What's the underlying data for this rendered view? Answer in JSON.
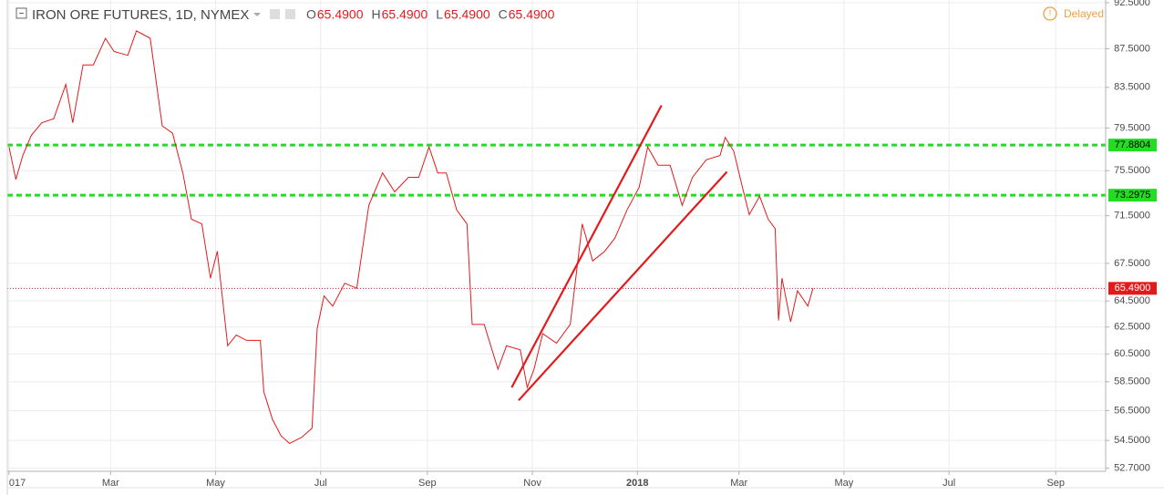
{
  "header": {
    "title": "IRON ORE FUTURES, 1D, NYMEX",
    "ohlc": [
      {
        "label": "O",
        "value": "65.4900"
      },
      {
        "label": "H",
        "value": "65.4900"
      },
      {
        "label": "L",
        "value": "65.4900"
      },
      {
        "label": "C",
        "value": "65.4900"
      }
    ],
    "status": "Delayed"
  },
  "chart_data": {
    "type": "line",
    "log_scale": true,
    "grid": true,
    "series": [
      {
        "name": "IRON ORE FUTURES",
        "color": "#e31a1c",
        "x": [
          0,
          4,
          8,
          13,
          19,
          26,
          33,
          37,
          43,
          49,
          56,
          61,
          69,
          74,
          82,
          89,
          95,
          101,
          106,
          112,
          117,
          121,
          127,
          132,
          138,
          146,
          148,
          153,
          158,
          163,
          170,
          176,
          179,
          183,
          188,
          195,
          202,
          209,
          217,
          224,
          232,
          238,
          244,
          249,
          254,
          260,
          266,
          269,
          276,
          284,
          289,
          297,
          301,
          305,
          310,
          318,
          326,
          333,
          339,
          346,
          352,
          359,
          366,
          371,
          377,
          384,
          391,
          397,
          405,
          413,
          416,
          421,
          426,
          430,
          436,
          441,
          445,
          447,
          449,
          454,
          458,
          464,
          467
        ],
        "values": [
          77.7,
          74.7,
          76.9,
          78.8,
          80.0,
          80.4,
          83.8,
          80.0,
          85.8,
          85.8,
          88.6,
          87.2,
          86.8,
          89.4,
          88.6,
          79.7,
          79.0,
          75.3,
          71.2,
          70.8,
          66.3,
          68.5,
          61.1,
          61.9,
          61.5,
          61.5,
          57.8,
          55.9,
          54.8,
          54.3,
          54.7,
          55.3,
          62.4,
          64.9,
          64.1,
          65.9,
          65.5,
          72.4,
          75.3,
          73.6,
          74.9,
          74.9,
          77.7,
          75.3,
          75.3,
          72.0,
          70.8,
          62.7,
          62.7,
          59.4,
          61.1,
          60.8,
          58.1,
          59.4,
          62.0,
          61.3,
          62.7,
          70.8,
          67.7,
          68.5,
          69.6,
          72.0,
          74.0,
          77.7,
          76.0,
          76.0,
          72.4,
          74.9,
          76.5,
          76.9,
          78.6,
          77.3,
          74.0,
          71.6,
          73.2,
          71.2,
          70.4,
          63.0,
          66.3,
          62.9,
          65.3,
          64.1,
          65.49
        ]
      }
    ],
    "hlines": [
      {
        "value": 77.8804,
        "label": "77.8804",
        "color": "#22dd22",
        "text_color": "#000000",
        "style": "dashed"
      },
      {
        "value": 73.2975,
        "label": "73.2975",
        "color": "#22dd22",
        "text_color": "#000000",
        "style": "dashed"
      },
      {
        "value": 65.49,
        "label": "65.4900",
        "color": "#e31a1c",
        "text_color": "#ffffff",
        "style": "dotted"
      }
    ],
    "trendlines": [
      {
        "color": "#e31a1c",
        "x": [
          292,
          379
        ],
        "y": [
          58.1,
          81.7
        ]
      },
      {
        "color": "#e31a1c",
        "x": [
          296,
          417
        ],
        "y": [
          57.2,
          75.4
        ]
      }
    ],
    "xlim": [
      -1,
      637
    ],
    "xticks": [
      {
        "value": 0,
        "label": "017"
      },
      {
        "value": 59,
        "label": "Mar"
      },
      {
        "value": 120,
        "label": "May"
      },
      {
        "value": 181,
        "label": "Jul"
      },
      {
        "value": 243,
        "label": "Sep"
      },
      {
        "value": 304,
        "label": "Nov"
      },
      {
        "value": 365,
        "label": "2018"
      },
      {
        "value": 424,
        "label": "Mar"
      },
      {
        "value": 485,
        "label": "May"
      },
      {
        "value": 546,
        "label": "Jul"
      },
      {
        "value": 608,
        "label": "Sep"
      }
    ],
    "ylim": [
      52.5,
      92.8
    ],
    "yticks": [
      {
        "value": 92.5,
        "label": "92.5000"
      },
      {
        "value": 87.5,
        "label": "87.5000"
      },
      {
        "value": 83.5,
        "label": "83.5000"
      },
      {
        "value": 79.5,
        "label": "79.5000"
      },
      {
        "value": 75.5,
        "label": "75.5000"
      },
      {
        "value": 71.5,
        "label": "71.5000"
      },
      {
        "value": 67.5,
        "label": "67.5000"
      },
      {
        "value": 64.5,
        "label": "64.5000"
      },
      {
        "value": 62.5,
        "label": "62.5000"
      },
      {
        "value": 60.5,
        "label": "60.5000"
      },
      {
        "value": 58.5,
        "label": "58.5000"
      },
      {
        "value": 56.5,
        "label": "56.5000"
      },
      {
        "value": 54.5,
        "label": "54.5000"
      },
      {
        "value": 52.7,
        "label": "52.7000"
      }
    ]
  }
}
